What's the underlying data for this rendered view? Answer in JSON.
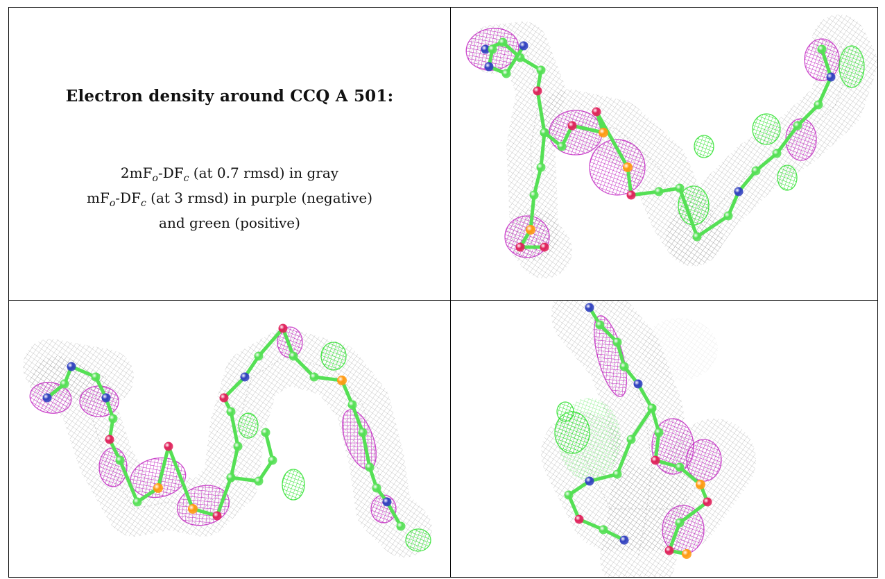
{
  "caption": {
    "title": "Electron density around CCQ A 501:",
    "line1_pre": "2mF",
    "line1_mid": "-DF",
    "line1_post": " (at 0.7 rmsd) in gray",
    "line2_pre": "mF",
    "line2_mid": "-DF",
    "line2_post": " (at 3 rmsd) in purple (negative)",
    "line3": "and green (positive)",
    "sub_o": "o",
    "sub_c": "c"
  },
  "colors": {
    "mesh_2fofc": "#9a9a9a",
    "mesh_negative": "#c020c0",
    "mesh_positive": "#22e022",
    "carbon": "#55e055",
    "oxygen": "#e0205a",
    "nitrogen": "#3040c0",
    "phosphorus": "#ff9a10"
  },
  "panels": [
    {
      "id": "top-right",
      "view": "density-view-1"
    },
    {
      "id": "bottom-left",
      "view": "density-view-2"
    },
    {
      "id": "bottom-right",
      "view": "density-view-3"
    }
  ]
}
